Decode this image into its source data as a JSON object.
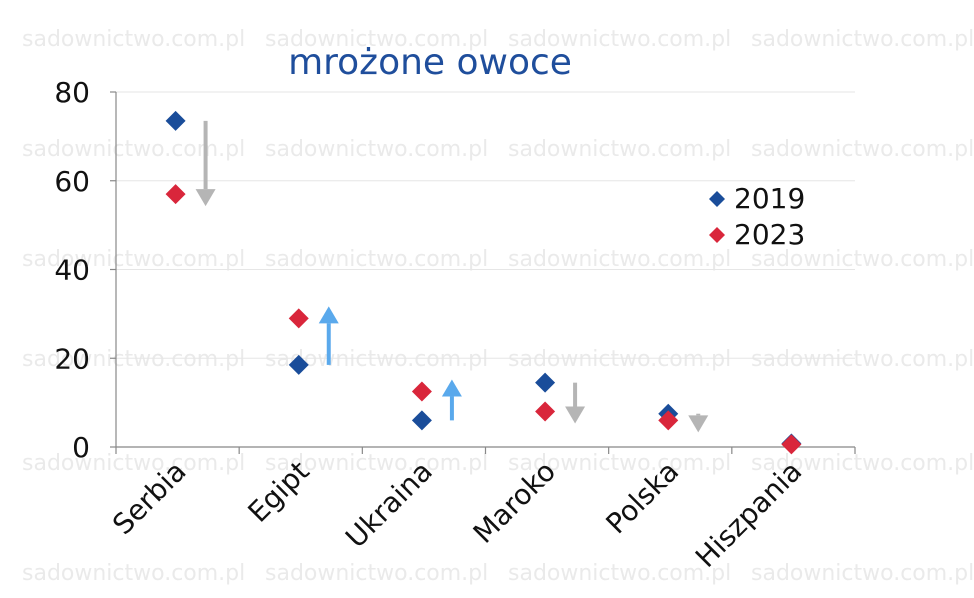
{
  "watermark": "sadownictwo.com.pl",
  "colors": {
    "series_2019": "#1a4d9a",
    "series_2023": "#d9263b",
    "arrow_down": "#b5b5b5",
    "arrow_up": "#5aa9ec",
    "title": "#1f4e9c"
  },
  "chart_data": {
    "type": "scatter",
    "title": "mrożone owoce",
    "xlabel": "",
    "ylabel": "",
    "categories": [
      "Serbia",
      "Egipt",
      "Ukraina",
      "Maroko",
      "Polska",
      "Hiszpania"
    ],
    "ylim": [
      0,
      80
    ],
    "yticks": [
      0,
      20,
      40,
      60,
      80
    ],
    "grid": true,
    "legend_position": "right",
    "marker": "diamond",
    "series": [
      {
        "name": "2019",
        "values": [
          73.5,
          18.5,
          6.0,
          14.5,
          7.5,
          0.8
        ]
      },
      {
        "name": "2023",
        "values": [
          57.0,
          29.0,
          12.5,
          8.0,
          6.0,
          0.6
        ]
      }
    ],
    "change_arrows": [
      {
        "category": "Serbia",
        "direction": "down",
        "from": 73.5,
        "to": 57.0
      },
      {
        "category": "Egipt",
        "direction": "up",
        "from": 18.5,
        "to": 29.0
      },
      {
        "category": "Ukraina",
        "direction": "up",
        "from": 6.0,
        "to": 12.5
      },
      {
        "category": "Maroko",
        "direction": "down",
        "from": 14.5,
        "to": 8.0
      },
      {
        "category": "Polska",
        "direction": "down",
        "from": 7.5,
        "to": 6.0
      }
    ]
  }
}
